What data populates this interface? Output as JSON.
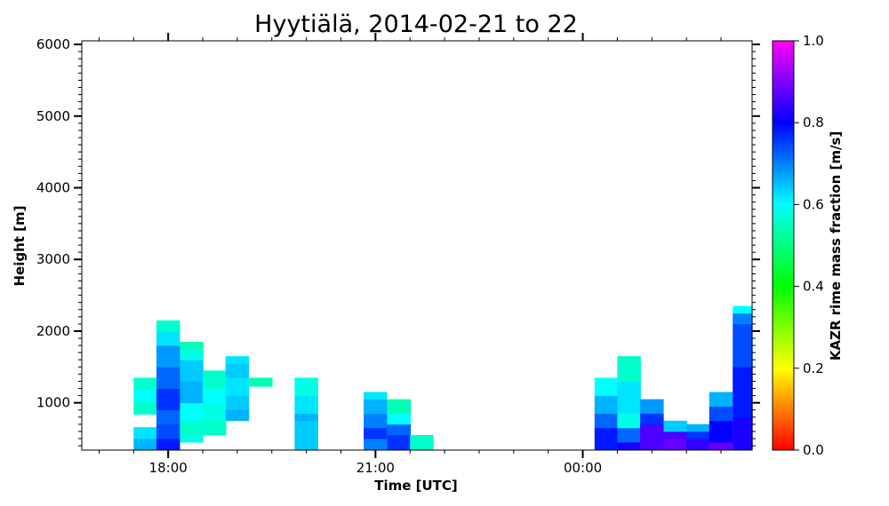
{
  "chart_data": {
    "type": "heatmap",
    "title": "Hyytiälä, 2014-02-21 to 22",
    "xlabel": "Time [UTC]",
    "ylabel": "Height [m]",
    "xlim_hours": [
      16.75,
      26.45
    ],
    "ylim": [
      340,
      6050
    ],
    "x_ticks": [
      {
        "hour": 18,
        "label": "18:00"
      },
      {
        "hour": 21,
        "label": "21:00"
      },
      {
        "hour": 24,
        "label": "00:00"
      }
    ],
    "y_ticks": [
      {
        "value": 1000,
        "label": "1000"
      },
      {
        "value": 2000,
        "label": "2000"
      },
      {
        "value": 3000,
        "label": "3000"
      },
      {
        "value": 4000,
        "label": "4000"
      },
      {
        "value": 5000,
        "label": "5000"
      },
      {
        "value": 6000,
        "label": "6000"
      }
    ],
    "colorbar": {
      "label": "KAZR rime mass fraction [m/s]",
      "range": [
        0,
        1
      ],
      "ticks": [
        "0.0",
        "0.2",
        "0.4",
        "0.6",
        "0.8",
        "1.0"
      ],
      "colormap": [
        "#ff0000",
        "#ffff00",
        "#00ff00",
        "#00ffff",
        "#0000ff",
        "#ff00ff"
      ]
    },
    "grid": false,
    "column_width_hours": 0.333,
    "row_height_m": 100,
    "columns": [
      {
        "t": 17.5,
        "cells": [
          [
            350,
            500,
            0.66
          ],
          [
            500,
            660,
            0.62
          ],
          [
            840,
            1020,
            0.56
          ],
          [
            1020,
            1190,
            0.6
          ],
          [
            1190,
            1350,
            0.56
          ]
        ]
      },
      {
        "t": 17.83,
        "cells": [
          [
            350,
            500,
            0.78
          ],
          [
            500,
            700,
            0.74
          ],
          [
            700,
            900,
            0.72
          ],
          [
            900,
            1200,
            0.76
          ],
          [
            1200,
            1500,
            0.72
          ],
          [
            1500,
            1800,
            0.68
          ],
          [
            1800,
            2000,
            0.62
          ],
          [
            2000,
            2150,
            0.56
          ]
        ]
      },
      {
        "t": 18.17,
        "cells": [
          [
            450,
            560,
            0.58
          ],
          [
            560,
            750,
            0.56
          ],
          [
            750,
            1000,
            0.6
          ],
          [
            1000,
            1300,
            0.66
          ],
          [
            1300,
            1600,
            0.64
          ],
          [
            1600,
            1750,
            0.58
          ],
          [
            1750,
            1850,
            0.54
          ]
        ]
      },
      {
        "t": 18.5,
        "cells": [
          [
            550,
            750,
            0.56
          ],
          [
            750,
            1000,
            0.58
          ],
          [
            1000,
            1200,
            0.6
          ],
          [
            1200,
            1450,
            0.56
          ]
        ]
      },
      {
        "t": 18.83,
        "cells": [
          [
            750,
            900,
            0.66
          ],
          [
            900,
            1100,
            0.64
          ],
          [
            1100,
            1350,
            0.62
          ],
          [
            1350,
            1550,
            0.64
          ],
          [
            1550,
            1650,
            0.62
          ]
        ]
      },
      {
        "t": 19.17,
        "cells": [
          [
            1230,
            1350,
            0.54
          ]
        ]
      },
      {
        "t": 19.83,
        "cells": [
          [
            350,
            750,
            0.64
          ],
          [
            750,
            850,
            0.66
          ],
          [
            850,
            1100,
            0.62
          ],
          [
            1100,
            1350,
            0.58
          ]
        ]
      },
      {
        "t": 20.83,
        "cells": [
          [
            350,
            500,
            0.7
          ],
          [
            500,
            650,
            0.76
          ],
          [
            650,
            850,
            0.7
          ],
          [
            850,
            1050,
            0.66
          ],
          [
            1050,
            1150,
            0.62
          ]
        ]
      },
      {
        "t": 21.17,
        "cells": [
          [
            350,
            550,
            0.76
          ],
          [
            550,
            700,
            0.72
          ],
          [
            700,
            850,
            0.6
          ],
          [
            850,
            1050,
            0.54
          ]
        ]
      },
      {
        "t": 21.5,
        "cells": [
          [
            350,
            550,
            0.56
          ]
        ]
      },
      {
        "t": 24.17,
        "cells": [
          [
            350,
            650,
            0.78
          ],
          [
            650,
            850,
            0.72
          ],
          [
            850,
            1100,
            0.66
          ],
          [
            1100,
            1350,
            0.6
          ]
        ]
      },
      {
        "t": 24.5,
        "cells": [
          [
            350,
            450,
            0.82
          ],
          [
            450,
            650,
            0.72
          ],
          [
            650,
            850,
            0.58
          ],
          [
            850,
            1300,
            0.62
          ],
          [
            1300,
            1650,
            0.56
          ]
        ]
      },
      {
        "t": 24.83,
        "cells": [
          [
            350,
            700,
            0.86
          ],
          [
            700,
            850,
            0.76
          ],
          [
            850,
            1050,
            0.68
          ]
        ]
      },
      {
        "t": 25.17,
        "cells": [
          [
            350,
            500,
            0.88
          ],
          [
            500,
            600,
            0.86
          ],
          [
            600,
            750,
            0.64
          ]
        ]
      },
      {
        "t": 25.5,
        "cells": [
          [
            350,
            500,
            0.84
          ],
          [
            500,
            600,
            0.76
          ],
          [
            600,
            700,
            0.66
          ]
        ]
      },
      {
        "t": 25.83,
        "cells": [
          [
            350,
            450,
            0.88
          ],
          [
            450,
            750,
            0.8
          ],
          [
            750,
            950,
            0.74
          ],
          [
            950,
            1150,
            0.66
          ]
        ]
      },
      {
        "t": 26.17,
        "cells": [
          [
            350,
            800,
            0.82
          ],
          [
            800,
            1500,
            0.78
          ],
          [
            1500,
            2100,
            0.74
          ],
          [
            2100,
            2250,
            0.7
          ],
          [
            2250,
            2350,
            0.6
          ]
        ]
      },
      {
        "t": 26.45,
        "cells": [
          [
            350,
            750,
            0.86
          ],
          [
            750,
            1400,
            0.8
          ],
          [
            1400,
            1650,
            0.72
          ],
          [
            1650,
            1850,
            0.62
          ]
        ]
      }
    ]
  }
}
